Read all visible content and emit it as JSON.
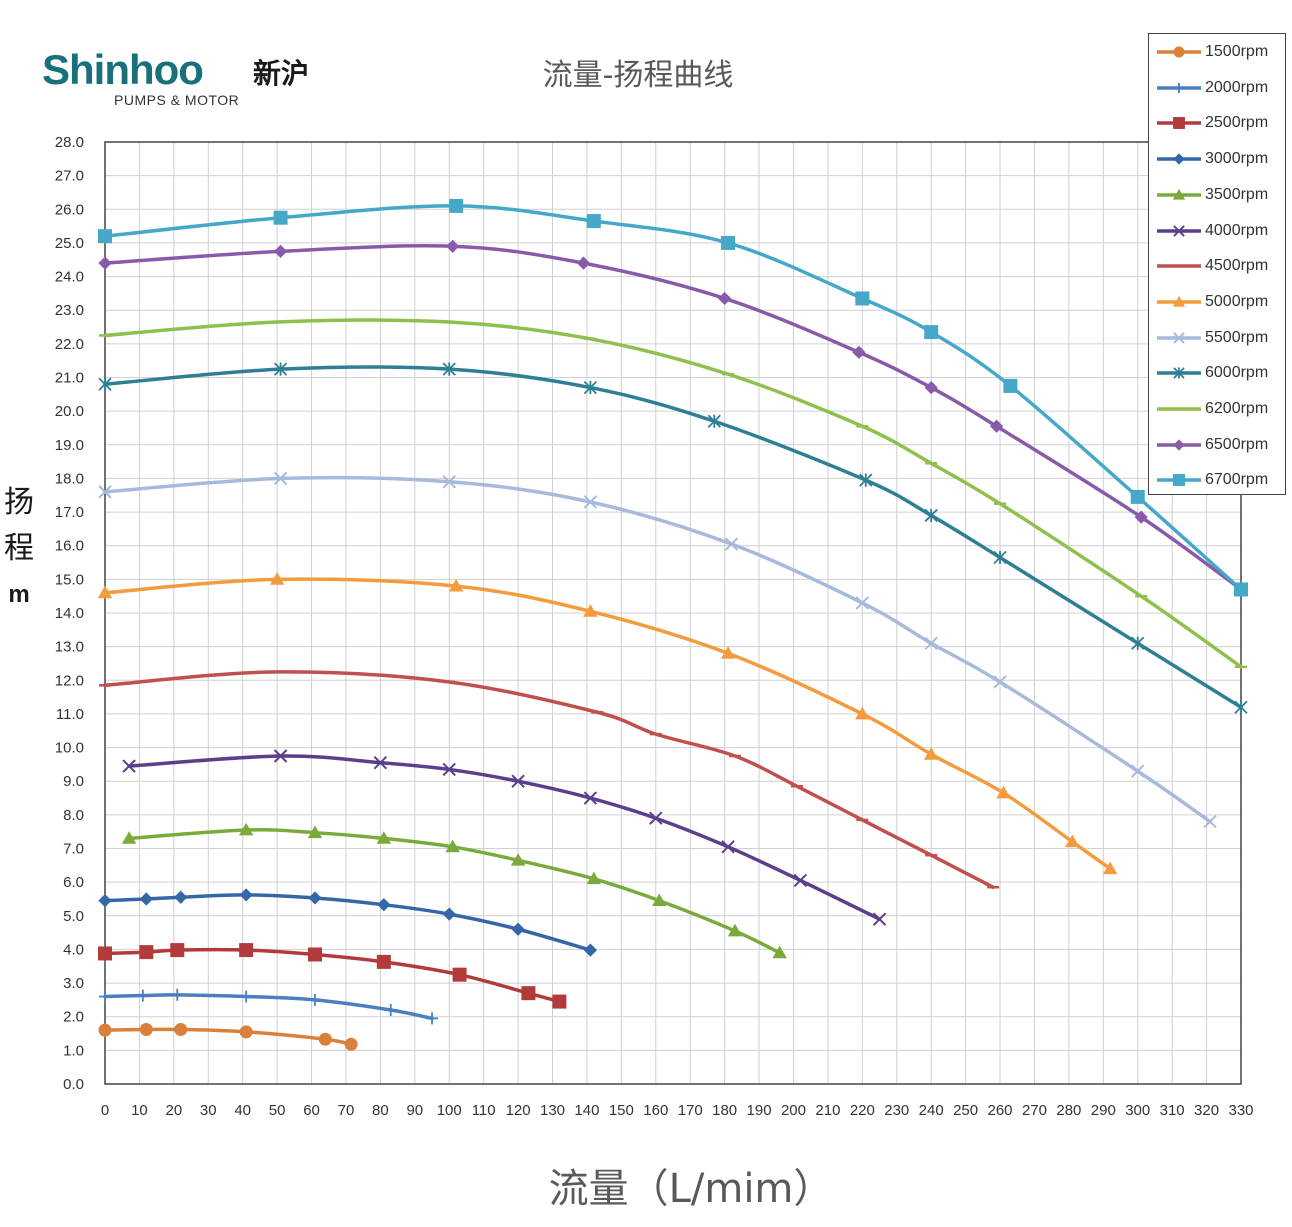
{
  "logo": {
    "brand": "Shinhoo",
    "cn": "新沪",
    "sub": "PUMPS & MOTOR"
  },
  "chart_data": {
    "type": "line",
    "title": "流量-扬程曲线",
    "xlabel": "流量（L/mim）",
    "ylabel_chars": [
      "扬",
      "程"
    ],
    "ylabel_unit": "m",
    "xlim": [
      0,
      330
    ],
    "ylim": [
      0,
      28
    ],
    "xticks": [
      0,
      10,
      20,
      30,
      40,
      50,
      60,
      70,
      80,
      90,
      100,
      110,
      120,
      130,
      140,
      150,
      160,
      170,
      180,
      190,
      200,
      210,
      220,
      230,
      240,
      250,
      260,
      270,
      280,
      290,
      300,
      310,
      320,
      330
    ],
    "yticks": [
      "0.0",
      "1.0",
      "2.0",
      "3.0",
      "4.0",
      "5.0",
      "6.0",
      "7.0",
      "8.0",
      "9.0",
      "10.0",
      "11.0",
      "12.0",
      "13.0",
      "14.0",
      "15.0",
      "16.0",
      "17.0",
      "18.0",
      "19.0",
      "20.0",
      "21.0",
      "22.0",
      "23.0",
      "24.0",
      "25.0",
      "26.0",
      "27.0",
      "28.0"
    ],
    "grid": true,
    "legend_position": "top-right",
    "series": [
      {
        "name": "1500rpm",
        "color": "#d9813a",
        "marker": "circle",
        "x": [
          0,
          12,
          22,
          41,
          64,
          71.5
        ],
        "y": [
          1.6,
          1.62,
          1.62,
          1.55,
          1.33,
          1.18
        ]
      },
      {
        "name": "2000rpm",
        "color": "#4a7fc1",
        "marker": "plus",
        "x": [
          0,
          11,
          21,
          41,
          61,
          83,
          95
        ],
        "y": [
          2.6,
          2.63,
          2.65,
          2.6,
          2.5,
          2.2,
          1.95
        ]
      },
      {
        "name": "2500rpm",
        "color": "#b23a3a",
        "marker": "square",
        "x": [
          0,
          12,
          21,
          41,
          61,
          81,
          103,
          123,
          132
        ],
        "y": [
          3.88,
          3.92,
          3.98,
          3.98,
          3.85,
          3.63,
          3.25,
          2.7,
          2.45
        ]
      },
      {
        "name": "3000rpm",
        "color": "#3566a8",
        "marker": "diamond",
        "x": [
          0,
          12,
          22,
          41,
          61,
          81,
          100,
          120,
          141
        ],
        "y": [
          5.45,
          5.5,
          5.55,
          5.62,
          5.53,
          5.33,
          5.05,
          4.6,
          3.98
        ]
      },
      {
        "name": "3500rpm",
        "color": "#7aaa3c",
        "marker": "triangle",
        "x": [
          7,
          41,
          61,
          81,
          101,
          120,
          142,
          161,
          183,
          196
        ],
        "y": [
          7.3,
          7.55,
          7.47,
          7.3,
          7.05,
          6.65,
          6.1,
          5.45,
          4.55,
          3.9
        ]
      },
      {
        "name": "4000rpm",
        "color": "#5c3f8c",
        "marker": "x",
        "x": [
          7,
          51,
          80,
          100,
          120,
          141,
          160,
          181,
          202,
          225
        ],
        "y": [
          9.45,
          9.75,
          9.55,
          9.35,
          9.0,
          8.5,
          7.9,
          7.05,
          6.05,
          4.9
        ]
      },
      {
        "name": "4500rpm",
        "color": "#c0504d",
        "marker": "dash",
        "x": [
          0,
          50,
          100,
          143,
          160,
          183,
          201,
          220,
          240,
          258
        ],
        "y": [
          11.85,
          12.25,
          11.95,
          11.05,
          10.4,
          9.75,
          8.85,
          7.85,
          6.8,
          5.85
        ]
      },
      {
        "name": "5000rpm",
        "color": "#f39b3d",
        "marker": "triangle",
        "x": [
          0,
          50,
          102,
          141,
          181,
          220,
          240,
          261,
          281,
          292
        ],
        "y": [
          14.6,
          15.0,
          14.8,
          14.05,
          12.8,
          11.0,
          9.8,
          8.65,
          7.2,
          6.4
        ]
      },
      {
        "name": "5500rpm",
        "color": "#a7b9dc",
        "marker": "x",
        "x": [
          0,
          51,
          100,
          141,
          182,
          220,
          240,
          260,
          300,
          321
        ],
        "y": [
          17.6,
          18.0,
          17.9,
          17.3,
          16.05,
          14.3,
          13.1,
          11.95,
          9.3,
          7.8
        ]
      },
      {
        "name": "6000rpm",
        "color": "#2f7f94",
        "marker": "star",
        "x": [
          0,
          51,
          100,
          141,
          177,
          221,
          240,
          260,
          300,
          330
        ],
        "y": [
          20.8,
          21.25,
          21.25,
          20.7,
          19.7,
          17.95,
          16.9,
          15.65,
          13.1,
          11.2
        ]
      },
      {
        "name": "6200rpm",
        "color": "#8fbf4c",
        "marker": "dash",
        "x": [
          0,
          50,
          100,
          141,
          181,
          220,
          240,
          260,
          301,
          330
        ],
        "y": [
          22.25,
          22.65,
          22.65,
          22.15,
          21.1,
          19.55,
          18.45,
          17.25,
          14.5,
          12.4
        ]
      },
      {
        "name": "6500rpm",
        "color": "#8a5aaa",
        "marker": "diamond",
        "x": [
          0,
          51,
          101,
          139,
          180,
          219,
          240,
          259,
          301,
          330
        ],
        "y": [
          24.4,
          24.75,
          24.9,
          24.4,
          23.35,
          21.75,
          20.7,
          19.55,
          16.85,
          14.7
        ]
      },
      {
        "name": "6700rpm",
        "color": "#45a8c8",
        "marker": "square",
        "x": [
          0,
          51,
          102,
          142,
          181,
          220,
          240,
          263,
          300,
          330
        ],
        "y": [
          25.2,
          25.75,
          26.1,
          25.65,
          25.0,
          23.35,
          22.35,
          20.75,
          17.45,
          14.7
        ]
      }
    ]
  }
}
